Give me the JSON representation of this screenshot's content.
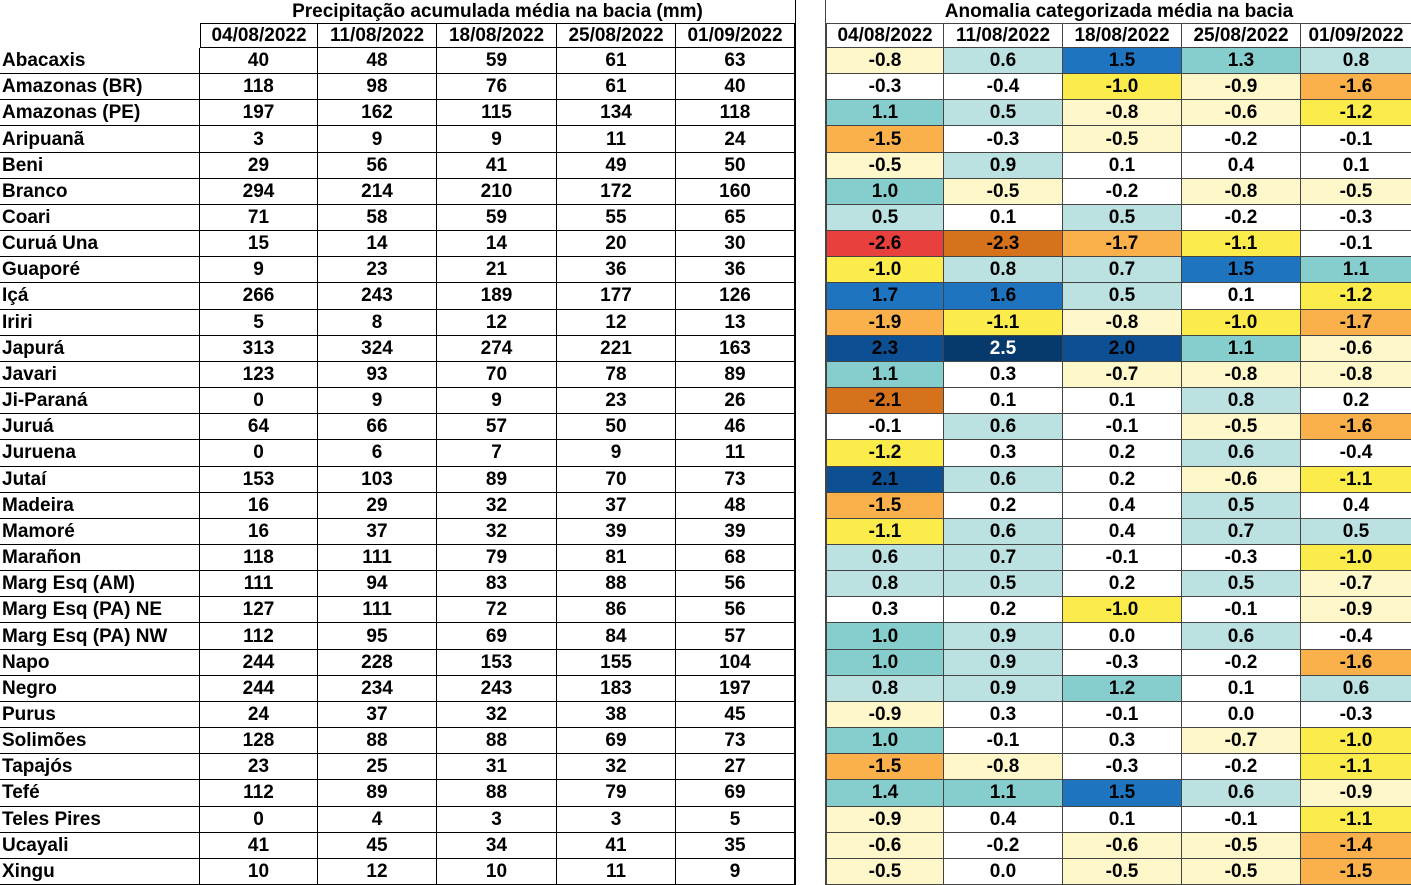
{
  "precip_table": {
    "title": "Precipitação acumulada média na bacia (mm)",
    "dates": [
      "04/08/2022",
      "11/08/2022",
      "18/08/2022",
      "25/08/2022",
      "01/09/2022"
    ],
    "rows": [
      {
        "name": "Abacaxis",
        "values": [
          40,
          48,
          59,
          61,
          63
        ]
      },
      {
        "name": "Amazonas (BR)",
        "values": [
          118,
          98,
          76,
          61,
          40
        ]
      },
      {
        "name": "Amazonas (PE)",
        "values": [
          197,
          162,
          115,
          134,
          118
        ]
      },
      {
        "name": "Aripuanã",
        "values": [
          3,
          9,
          9,
          11,
          24
        ]
      },
      {
        "name": "Beni",
        "values": [
          29,
          56,
          41,
          49,
          50
        ]
      },
      {
        "name": "Branco",
        "values": [
          294,
          214,
          210,
          172,
          160
        ]
      },
      {
        "name": "Coari",
        "values": [
          71,
          58,
          59,
          55,
          65
        ]
      },
      {
        "name": "Curuá Una",
        "values": [
          15,
          14,
          14,
          20,
          30
        ]
      },
      {
        "name": "Guaporé",
        "values": [
          9,
          23,
          21,
          36,
          36
        ]
      },
      {
        "name": "Içá",
        "values": [
          266,
          243,
          189,
          177,
          126
        ]
      },
      {
        "name": "Iriri",
        "values": [
          5,
          8,
          12,
          12,
          13
        ]
      },
      {
        "name": "Japurá",
        "values": [
          313,
          324,
          274,
          221,
          163
        ]
      },
      {
        "name": "Javari",
        "values": [
          123,
          93,
          70,
          78,
          89
        ]
      },
      {
        "name": "Ji-Paraná",
        "values": [
          0,
          9,
          9,
          23,
          26
        ]
      },
      {
        "name": "Juruá",
        "values": [
          64,
          66,
          57,
          50,
          46
        ]
      },
      {
        "name": "Juruena",
        "values": [
          0,
          6,
          7,
          9,
          11
        ]
      },
      {
        "name": "Jutaí",
        "values": [
          153,
          103,
          89,
          70,
          73
        ]
      },
      {
        "name": "Madeira",
        "values": [
          16,
          29,
          32,
          37,
          48
        ]
      },
      {
        "name": "Mamoré",
        "values": [
          16,
          37,
          32,
          39,
          39
        ]
      },
      {
        "name": "Marañon",
        "values": [
          118,
          111,
          79,
          81,
          68
        ]
      },
      {
        "name": "Marg Esq (AM)",
        "values": [
          111,
          94,
          83,
          88,
          56
        ]
      },
      {
        "name": "Marg Esq (PA) NE",
        "values": [
          127,
          111,
          72,
          86,
          56
        ]
      },
      {
        "name": "Marg Esq (PA) NW",
        "values": [
          112,
          95,
          69,
          84,
          57
        ]
      },
      {
        "name": "Napo",
        "values": [
          244,
          228,
          153,
          155,
          104
        ]
      },
      {
        "name": "Negro",
        "values": [
          244,
          234,
          243,
          183,
          197
        ]
      },
      {
        "name": "Purus",
        "values": [
          24,
          37,
          32,
          38,
          45
        ]
      },
      {
        "name": "Solimões",
        "values": [
          128,
          88,
          88,
          69,
          73
        ]
      },
      {
        "name": "Tapajós",
        "values": [
          23,
          25,
          31,
          32,
          27
        ]
      },
      {
        "name": "Tefé",
        "values": [
          112,
          89,
          88,
          79,
          69
        ]
      },
      {
        "name": "Teles Pires",
        "values": [
          0,
          4,
          3,
          3,
          5
        ]
      },
      {
        "name": "Ucayali",
        "values": [
          41,
          45,
          34,
          41,
          35
        ]
      },
      {
        "name": "Xingu",
        "values": [
          10,
          12,
          10,
          11,
          9
        ]
      }
    ]
  },
  "anomaly_table": {
    "title": "Anomalia categorizada média na bacia",
    "dates": [
      "04/08/2022",
      "11/08/2022",
      "18/08/2022",
      "25/08/2022",
      "01/09/2022"
    ],
    "rows": [
      [
        "-0.8",
        "0.6",
        "1.5",
        "1.3",
        "0.8"
      ],
      [
        "-0.3",
        "-0.4",
        "-1.0",
        "-0.9",
        "-1.6"
      ],
      [
        "1.1",
        "0.5",
        "-0.8",
        "-0.6",
        "-1.2"
      ],
      [
        "-1.5",
        "-0.3",
        "-0.5",
        "-0.2",
        "-0.1"
      ],
      [
        "-0.5",
        "0.9",
        "0.1",
        "0.4",
        "0.1"
      ],
      [
        "1.0",
        "-0.5",
        "-0.2",
        "-0.8",
        "-0.5"
      ],
      [
        "0.5",
        "0.1",
        "0.5",
        "-0.2",
        "-0.3"
      ],
      [
        "-2.6",
        "-2.3",
        "-1.7",
        "-1.1",
        "-0.1"
      ],
      [
        "-1.0",
        "0.8",
        "0.7",
        "1.5",
        "1.1"
      ],
      [
        "1.7",
        "1.6",
        "0.5",
        "0.1",
        "-1.2"
      ],
      [
        "-1.9",
        "-1.1",
        "-0.8",
        "-1.0",
        "-1.7"
      ],
      [
        "2.3",
        "2.5",
        "2.0",
        "1.1",
        "-0.6"
      ],
      [
        "1.1",
        "0.3",
        "-0.7",
        "-0.8",
        "-0.8"
      ],
      [
        "-2.1",
        "0.1",
        "0.1",
        "0.8",
        "0.2"
      ],
      [
        "-0.1",
        "0.6",
        "-0.1",
        "-0.5",
        "-1.6"
      ],
      [
        "-1.2",
        "0.3",
        "0.2",
        "0.6",
        "-0.4"
      ],
      [
        "2.1",
        "0.6",
        "0.2",
        "-0.6",
        "-1.1"
      ],
      [
        "-1.5",
        "0.2",
        "0.4",
        "0.5",
        "0.4"
      ],
      [
        "-1.1",
        "0.6",
        "0.4",
        "0.7",
        "0.5"
      ],
      [
        "0.6",
        "0.7",
        "-0.1",
        "-0.3",
        "-1.0"
      ],
      [
        "0.8",
        "0.5",
        "0.2",
        "0.5",
        "-0.7"
      ],
      [
        "0.3",
        "0.2",
        "-1.0",
        "-0.1",
        "-0.9"
      ],
      [
        "1.0",
        "0.9",
        "0.0",
        "0.6",
        "-0.4"
      ],
      [
        "1.0",
        "0.9",
        "-0.3",
        "-0.2",
        "-1.6"
      ],
      [
        "0.8",
        "0.9",
        "1.2",
        "0.1",
        "0.6"
      ],
      [
        "-0.9",
        "0.3",
        "-0.1",
        "0.0",
        "-0.3"
      ],
      [
        "1.0",
        "-0.1",
        "0.3",
        "-0.7",
        "-1.0"
      ],
      [
        "-1.5",
        "-0.8",
        "-0.3",
        "-0.2",
        "-1.1"
      ],
      [
        "1.4",
        "1.1",
        "1.5",
        "0.6",
        "-0.9"
      ],
      [
        "-0.9",
        "0.4",
        "0.1",
        "-0.1",
        "-1.1"
      ],
      [
        "-0.6",
        "-0.2",
        "-0.6",
        "-0.5",
        "-1.4"
      ],
      [
        "-0.5",
        "0.0",
        "-0.5",
        "-0.5",
        "-1.5"
      ]
    ]
  }
}
